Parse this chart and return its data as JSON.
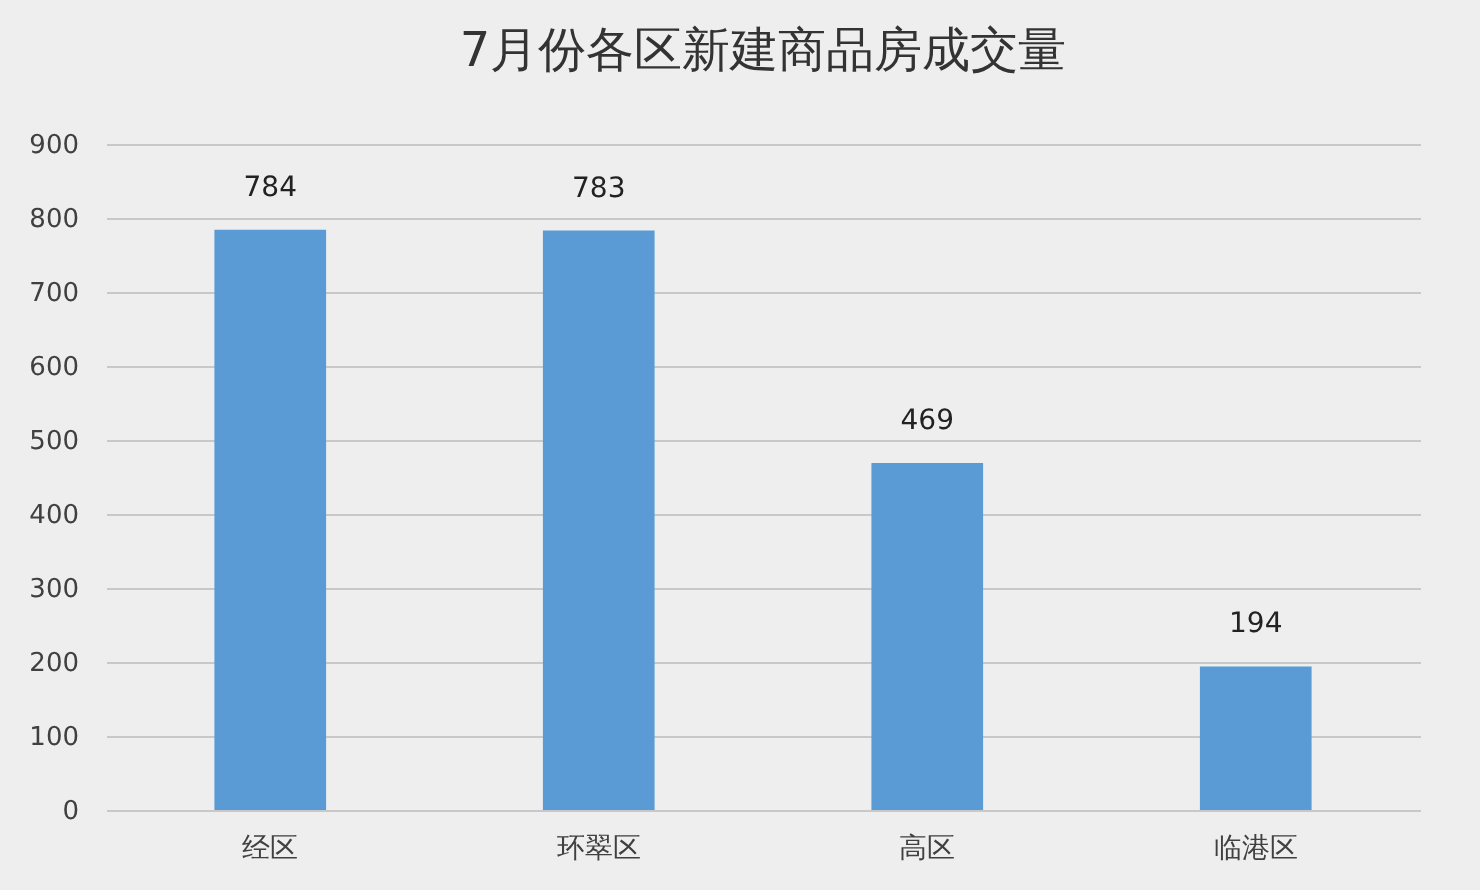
{
  "chart_data": {
    "type": "bar",
    "title": "7月份各区新建商品房成交量",
    "categories": [
      "经区",
      "环翠区",
      "高区",
      "临港区"
    ],
    "values": [
      784,
      783,
      469,
      194
    ],
    "color": "#5b9bd5",
    "ylim": [
      0,
      900
    ],
    "yticks": [
      0,
      100,
      200,
      300,
      400,
      500,
      600,
      700,
      800,
      900
    ],
    "grid": "y",
    "data_labels": true
  }
}
